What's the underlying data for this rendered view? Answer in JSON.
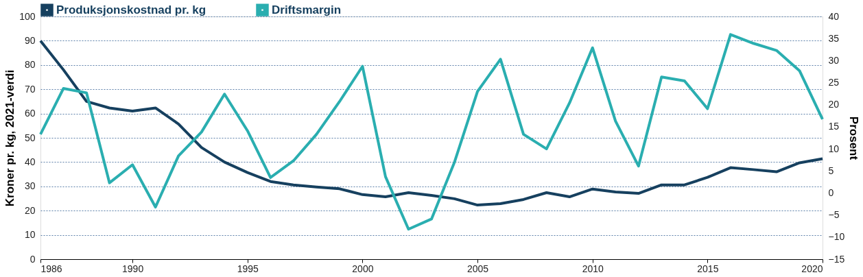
{
  "chart_data": {
    "type": "line",
    "x": [
      1986,
      1987,
      1988,
      1989,
      1990,
      1991,
      1992,
      1993,
      1994,
      1995,
      1996,
      1997,
      1998,
      1999,
      2000,
      2001,
      2002,
      2003,
      2004,
      2005,
      2006,
      2007,
      2008,
      2009,
      2010,
      2011,
      2012,
      2013,
      2014,
      2015,
      2016,
      2017,
      2018,
      2019,
      2020
    ],
    "series": [
      {
        "name": "Produksjonskostnad pr. kg",
        "color": "#16405f",
        "values": [
          90,
          78,
          65,
          62.3,
          61,
          62.3,
          55.7,
          46,
          40,
          35.7,
          32,
          30.6,
          29.7,
          29,
          26.6,
          25.7,
          27.4,
          26.3,
          24.9,
          22.3,
          22.9,
          24.6,
          27.4,
          25.7,
          28.9,
          27.7,
          27.1,
          30.6,
          30.6,
          33.7,
          37.7,
          36.9,
          36,
          39.7,
          41.4
        ]
      },
      {
        "name": "Driftsmargin",
        "color": "#2aaeb0",
        "axis": "y2",
        "values": [
          13.3,
          23.7,
          22.7,
          2.3,
          6.4,
          -3.2,
          8.4,
          13.8,
          22.4,
          14.1,
          3.5,
          7.3,
          13.3,
          20.7,
          28.7,
          3.7,
          -8.2,
          -5.9,
          7,
          23,
          30.3,
          13.3,
          10,
          20.4,
          32.9,
          16.3,
          6.1,
          26.3,
          25.4,
          19.1,
          35.9,
          33.9,
          32.3,
          27.7,
          16.7
        ]
      }
    ],
    "ylabel": "Kroner pr. kg, 2021-verdi",
    "y2label": "Prosent",
    "xlim": [
      1986,
      2020
    ],
    "xticks": [
      1986,
      1990,
      1995,
      2000,
      2005,
      2010,
      2015,
      2020
    ],
    "ylim": [
      0,
      100
    ],
    "yticks": [
      0,
      10,
      20,
      30,
      40,
      50,
      60,
      70,
      80,
      90,
      100
    ],
    "y2lim": [
      -15,
      40
    ],
    "y2ticks": [
      -15,
      -10,
      -5,
      0,
      5,
      10,
      15,
      20,
      25,
      30,
      35,
      40
    ],
    "grid": "y",
    "legend": "top",
    "line_style": "solid",
    "marker": "none"
  }
}
